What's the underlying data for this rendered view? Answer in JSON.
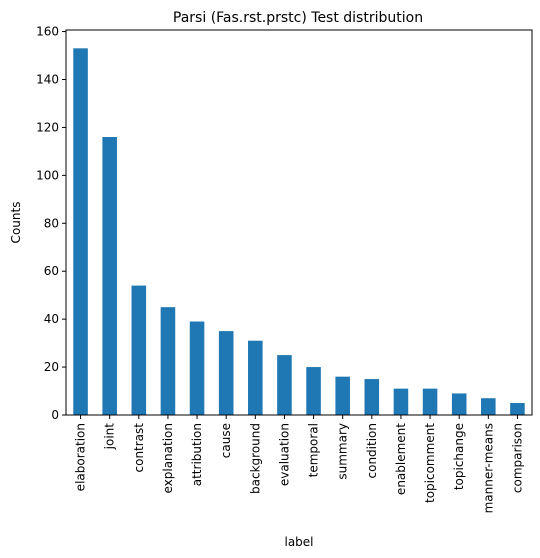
{
  "chart_data": {
    "type": "bar",
    "title": "Parsi (Fas.rst.prstc) Test distribution",
    "xlabel": "label",
    "ylabel": "Counts",
    "categories": [
      "elaboration",
      "joint",
      "contrast",
      "explanation",
      "attribution",
      "cause",
      "background",
      "evaluation",
      "temporal",
      "summary",
      "condition",
      "enablement",
      "topicomment",
      "topichange",
      "manner-means",
      "comparison"
    ],
    "values": [
      153,
      116,
      54,
      45,
      39,
      35,
      31,
      25,
      20,
      16,
      15,
      11,
      11,
      9,
      7,
      5
    ],
    "yticks": [
      0,
      20,
      40,
      60,
      80,
      100,
      120,
      140,
      160
    ],
    "ylim": [
      0,
      160.65
    ],
    "bar_color": "#1f77b4",
    "grid": false,
    "legend": "none"
  }
}
